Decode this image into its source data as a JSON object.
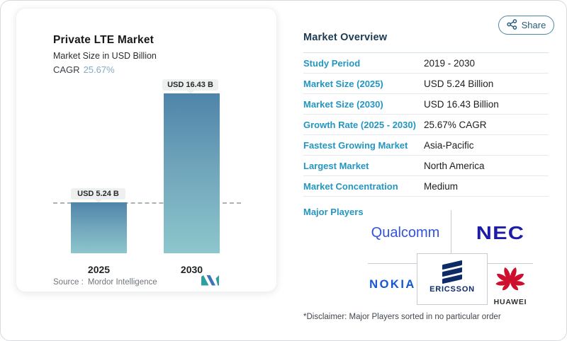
{
  "share": {
    "label": "Share"
  },
  "chart_card": {
    "title": "Private LTE Market",
    "subtitle": "Market Size in USD Billion",
    "cagr_label": "CAGR",
    "cagr_value": "25.67%",
    "source_label": "Source :",
    "source_value": "Mordor Intelligence"
  },
  "chart_data": {
    "type": "bar",
    "title": "Private LTE Market",
    "subtitle": "Market Size in USD Billion",
    "unit": "USD Billion",
    "cagr_percent": "25.67%",
    "categories": [
      "2025",
      "2030"
    ],
    "values": [
      5.24,
      16.43
    ],
    "bar_value_labels": [
      "USD 5.24 B",
      "USD 16.43 B"
    ],
    "baseline": {
      "value": 5.24,
      "style": "dashed"
    },
    "ylim": [
      0,
      16.43
    ],
    "grid": "off",
    "colors": {
      "bar_top": "#4f84aa",
      "bar_bottom": "#8dc6cc"
    }
  },
  "overview": {
    "heading": "Market Overview",
    "rows": [
      {
        "label": "Study Period",
        "value": "2019 - 2030"
      },
      {
        "label": "Market Size (2025)",
        "value": "USD 5.24 Billion"
      },
      {
        "label": "Market Size (2030)",
        "value": "USD 16.43 Billion"
      },
      {
        "label": "Growth Rate (2025 - 2030)",
        "value": "25.67% CAGR"
      },
      {
        "label": "Fastest Growing Market",
        "value": "Asia-Pacific"
      },
      {
        "label": "Largest Market",
        "value": "North America"
      },
      {
        "label": "Market Concentration",
        "value": "Medium"
      }
    ],
    "major_players_label": "Major Players",
    "major_players": [
      "Qualcomm",
      "NEC",
      "Nokia",
      "Ericsson",
      "Huawei"
    ],
    "disclaimer": "*Disclaimer: Major Players sorted in no particular order"
  },
  "logos": {
    "qualcomm": "Qualcomm",
    "nec": "NEC",
    "nokia": "NOKIA",
    "ericsson": "ERICSSON",
    "huawei": "HUAWEI"
  },
  "colors": {
    "accent_teal": "#2396c1",
    "heading_navy": "#1c3a52",
    "cagr_blue": "#84abc7",
    "qualcomm_blue": "#3253dc",
    "nec_blue": "#1c1ca8",
    "nokia_blue": "#1557d2",
    "ericsson_navy": "#0d2b66",
    "huawei_red": "#ce0e2d"
  }
}
